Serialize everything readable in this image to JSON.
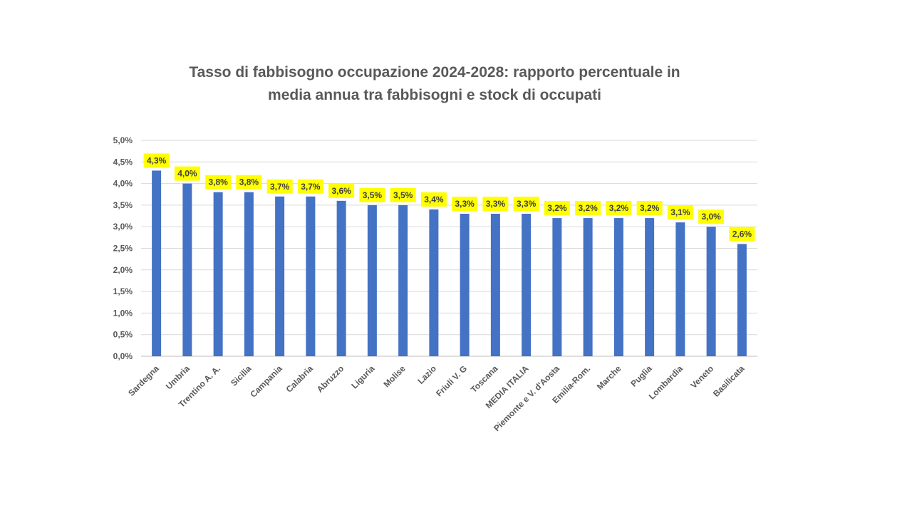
{
  "chart_data": {
    "type": "bar",
    "title_lines": [
      "Tasso di fabbisogno occupazione  2024-2028: rapporto percentuale in",
      "media annua tra fabbisogni  e stock di occupati"
    ],
    "xlabel": "",
    "ylabel": "",
    "ylim": [
      0,
      5
    ],
    "ytick_step": 0.5,
    "yticks": [
      "0,0%",
      "0,5%",
      "1,0%",
      "1,5%",
      "2,0%",
      "2,5%",
      "3,0%",
      "3,5%",
      "4,0%",
      "4,5%",
      "5,0%"
    ],
    "grid": true,
    "legend": "none",
    "bar_color": "#4472C4",
    "label_bg_color": "#FFFF00",
    "categories": [
      "Sardegna",
      "Umbria",
      "Trentino A. A.",
      "Sicilia",
      "Campania",
      "Calabria",
      "Abruzzo",
      "Liguria",
      "Molise",
      "Lazio",
      "Friuli V. G",
      "Toscana",
      "MEDIA ITALIA",
      "Piemonte e V. d'Aosta",
      "Emilia-Rom.",
      "Marche",
      "Puglia",
      "Lombardia",
      "Veneto",
      "Basilicata"
    ],
    "values": [
      4.3,
      4.0,
      3.8,
      3.8,
      3.7,
      3.7,
      3.6,
      3.5,
      3.5,
      3.4,
      3.3,
      3.3,
      3.3,
      3.2,
      3.2,
      3.2,
      3.2,
      3.1,
      3.0,
      2.6
    ],
    "data_labels": [
      "4,3%",
      "4,0%",
      "3,8%",
      "3,8%",
      "3,7%",
      "3,7%",
      "3,6%",
      "3,5%",
      "3,5%",
      "3,4%",
      "3,3%",
      "3,3%",
      "3,3%",
      "3,2%",
      "3,2%",
      "3,2%",
      "3,2%",
      "3,1%",
      "3,0%",
      "2,6%"
    ]
  }
}
